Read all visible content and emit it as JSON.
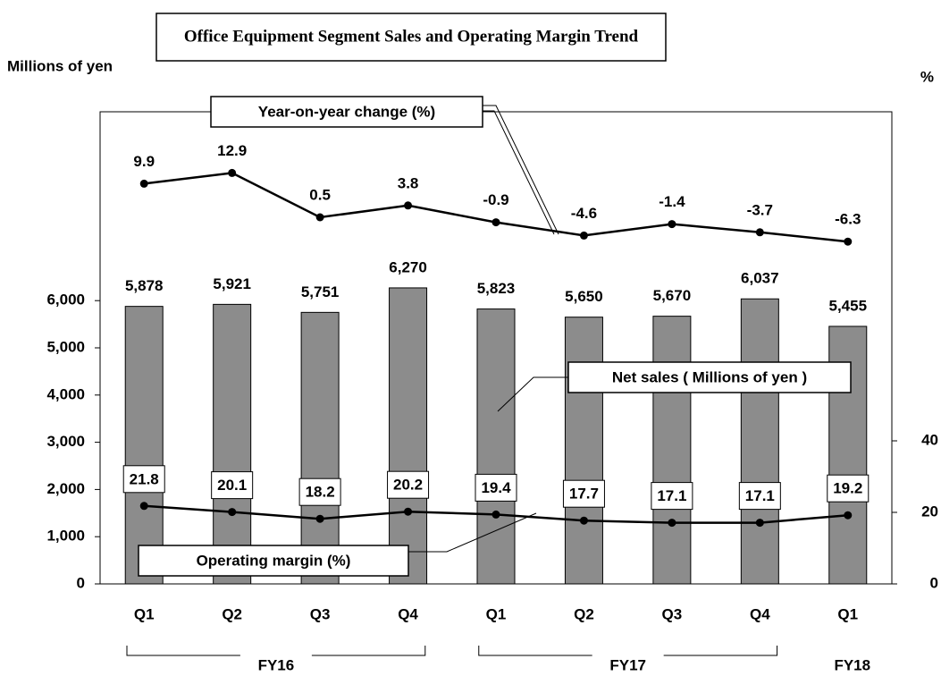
{
  "chart_data": {
    "type": "bar-line",
    "title": "Office Equipment Segment Sales and Operating Margin Trend",
    "y_label": "Millions of yen",
    "y2_label": "%",
    "categories": [
      "Q1",
      "Q2",
      "Q3",
      "Q4",
      "Q1",
      "Q2",
      "Q3",
      "Q4",
      "Q1"
    ],
    "groups": [
      {
        "name": "FY16",
        "count": 4
      },
      {
        "name": "FY17",
        "count": 4
      },
      {
        "name": "FY18",
        "count": 1
      }
    ],
    "series": [
      {
        "name": "Net sales ( Millions of yen )",
        "type": "bar",
        "color": "#8c8c8c",
        "values": [
          5878,
          5921,
          5751,
          6270,
          5823,
          5650,
          5670,
          6037,
          5455
        ],
        "value_labels": [
          "5,878",
          "5,921",
          "5,751",
          "6,270",
          "5,823",
          "5,650",
          "5,670",
          "6,037",
          "5,455"
        ]
      },
      {
        "name": "Operating margin (%)",
        "type": "line",
        "axis": "y2",
        "color": "#000000",
        "values": [
          21.8,
          20.1,
          18.2,
          20.2,
          19.4,
          17.7,
          17.1,
          17.1,
          19.2
        ]
      },
      {
        "name": "Year-on-year change (%)",
        "type": "line",
        "axis": "y3",
        "color": "#000000",
        "values": [
          9.9,
          12.9,
          0.5,
          3.8,
          -0.9,
          -4.6,
          -1.4,
          -3.7,
          -6.3
        ]
      }
    ],
    "ylim": [
      0,
      10000
    ],
    "yticks": [
      {
        "value": 0,
        "label": "0"
      },
      {
        "value": 1000,
        "label": "1,000"
      },
      {
        "value": 2000,
        "label": "2,000"
      },
      {
        "value": 3000,
        "label": "3,000"
      },
      {
        "value": 4000,
        "label": "4,000"
      },
      {
        "value": 5000,
        "label": "5,000"
      },
      {
        "value": 6000,
        "label": "6,000"
      }
    ],
    "y2lim": [
      0,
      132
    ],
    "y2ticks": [
      0,
      20,
      40
    ],
    "y3lim": [
      -102,
      30
    ]
  }
}
